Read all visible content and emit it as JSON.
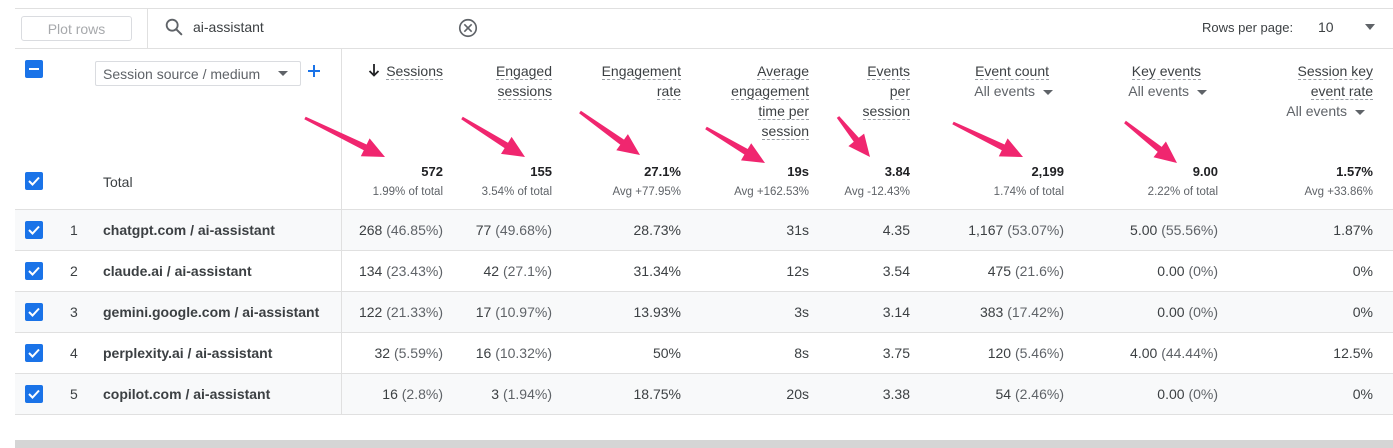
{
  "toolbar": {
    "plot_rows_label": "Plot rows",
    "search_value": "ai-assistant",
    "rows_per_page_label": "Rows per page:",
    "rows_per_page_value": "10"
  },
  "dimension": {
    "label": "Session source / medium"
  },
  "total_label": "Total",
  "columns": [
    {
      "h1": "Sessions",
      "h2": "",
      "h3": "",
      "h4": "",
      "total": "572",
      "total_sub": "1.99% of total"
    },
    {
      "h1": "Engaged",
      "h2": "sessions",
      "h3": "",
      "h4": "",
      "total": "155",
      "total_sub": "3.54% of total"
    },
    {
      "h1": "Engagement",
      "h2": "rate",
      "h3": "",
      "h4": "",
      "total": "27.1%",
      "total_sub": "Avg +77.95%"
    },
    {
      "h1": "Average",
      "h2": "engagement",
      "h3": "time per",
      "h4": "session",
      "total": "19s",
      "total_sub": "Avg +162.53%"
    },
    {
      "h1": "Events",
      "h2": "per",
      "h3": "session",
      "h4": "",
      "total": "3.84",
      "total_sub": "Avg -12.43%"
    },
    {
      "h1": "Event count",
      "h2": "",
      "h3": "",
      "h4": "",
      "sub": "All events",
      "total": "2,199",
      "total_sub": "1.74% of total"
    },
    {
      "h1": "Key events",
      "h2": "",
      "h3": "",
      "h4": "",
      "sub": "All events",
      "total": "9.00",
      "total_sub": "2.22% of total"
    },
    {
      "h1": "Session key",
      "h2": "event rate",
      "h3": "",
      "h4": "",
      "sub": "All events",
      "total": "1.57%",
      "total_sub": "Avg +33.86%"
    }
  ],
  "rows": [
    {
      "idx": "1",
      "dim": "chatgpt.com / ai-assistant",
      "c": [
        "268",
        "77",
        "28.73%",
        "31s",
        "4.35",
        "1,167",
        "5.00",
        "1.87%"
      ],
      "p": [
        "(46.85%)",
        "(49.68%)",
        "",
        "",
        "",
        "(53.07%)",
        "(55.56%)",
        ""
      ]
    },
    {
      "idx": "2",
      "dim": "claude.ai / ai-assistant",
      "c": [
        "134",
        "42",
        "31.34%",
        "12s",
        "3.54",
        "475",
        "0.00",
        "0%"
      ],
      "p": [
        "(23.43%)",
        "(27.1%)",
        "",
        "",
        "",
        "(21.6%)",
        "(0%)",
        ""
      ]
    },
    {
      "idx": "3",
      "dim": "gemini.google.com / ai-assistant",
      "c": [
        "122",
        "17",
        "13.93%",
        "3s",
        "3.14",
        "383",
        "0.00",
        "0%"
      ],
      "p": [
        "(21.33%)",
        "(10.97%)",
        "",
        "",
        "",
        "(17.42%)",
        "(0%)",
        ""
      ]
    },
    {
      "idx": "4",
      "dim": "perplexity.ai / ai-assistant",
      "c": [
        "32",
        "16",
        "50%",
        "8s",
        "3.75",
        "120",
        "4.00",
        "12.5%"
      ],
      "p": [
        "(5.59%)",
        "(10.32%)",
        "",
        "",
        "",
        "(5.46%)",
        "(44.44%)",
        ""
      ]
    },
    {
      "idx": "5",
      "dim": "copilot.com / ai-assistant",
      "c": [
        "16",
        "3",
        "18.75%",
        "20s",
        "3.38",
        "54",
        "0.00",
        "0%"
      ],
      "p": [
        "(2.8%)",
        "(1.94%)",
        "",
        "",
        "",
        "(2.46%)",
        "(0%)",
        ""
      ]
    }
  ],
  "colors": {
    "checkbox": "#1a73e8",
    "arrow": "#f0266f"
  }
}
